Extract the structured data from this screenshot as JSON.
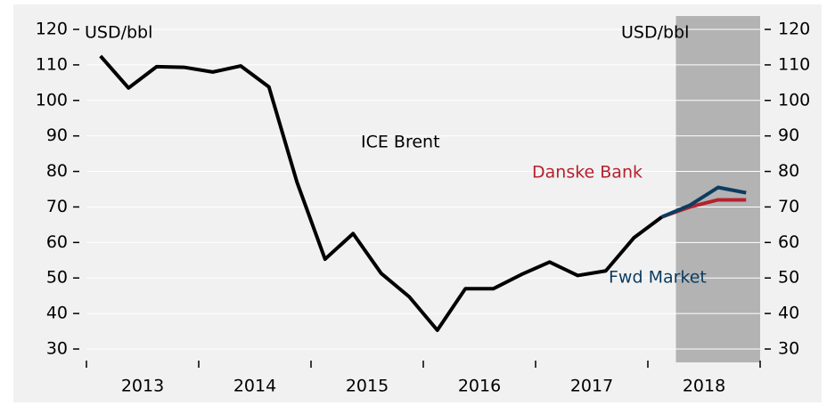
{
  "chart_data": {
    "type": "line",
    "y_label": "USD/bbl",
    "y2_label": "USD/bbl",
    "x": [
      2013.125,
      2013.375,
      2013.625,
      2013.875,
      2014.125,
      2014.375,
      2014.625,
      2014.875,
      2015.125,
      2015.375,
      2015.625,
      2015.875,
      2016.125,
      2016.375,
      2016.625,
      2016.875,
      2017.125,
      2017.375,
      2017.625,
      2017.875,
      2018.125
    ],
    "series": [
      {
        "name": "ICE Brent",
        "color": "#000000",
        "values": [
          112.5,
          103.5,
          109.5,
          109.3,
          108,
          109.7,
          103.8,
          77,
          55.3,
          62.5,
          51.3,
          44.7,
          35.3,
          47,
          47,
          51,
          54.5,
          50.7,
          52,
          61.3,
          67.2
        ]
      },
      {
        "name": "Danske Bank",
        "color": "#b5202e",
        "x": [
          2018.125,
          2018.375,
          2018.625,
          2018.875
        ],
        "values": [
          67.2,
          70,
          72,
          72
        ]
      },
      {
        "name": "Fwd Market",
        "color": "#0d3c61",
        "x": [
          2018.125,
          2018.375,
          2018.625,
          2018.875
        ],
        "values": [
          67.2,
          70.5,
          75.5,
          74
        ]
      }
    ],
    "categories": [
      "2013",
      "2014",
      "2015",
      "2016",
      "2017",
      "2018"
    ],
    "xlim": [
      2013,
      2019
    ],
    "xticks": [
      2013,
      2014,
      2015,
      2016,
      2017,
      2018,
      2019
    ],
    "ylim": [
      30,
      120
    ],
    "yticks": [
      30,
      40,
      50,
      60,
      70,
      80,
      90,
      100,
      110,
      120
    ],
    "y2lim": [
      30,
      120
    ],
    "y2ticks": [
      30,
      40,
      50,
      60,
      70,
      80,
      90,
      100,
      110,
      120
    ],
    "shade": {
      "xlim": [
        2018.25,
        2019
      ],
      "color": "#b3b3b3"
    },
    "grid": true
  }
}
